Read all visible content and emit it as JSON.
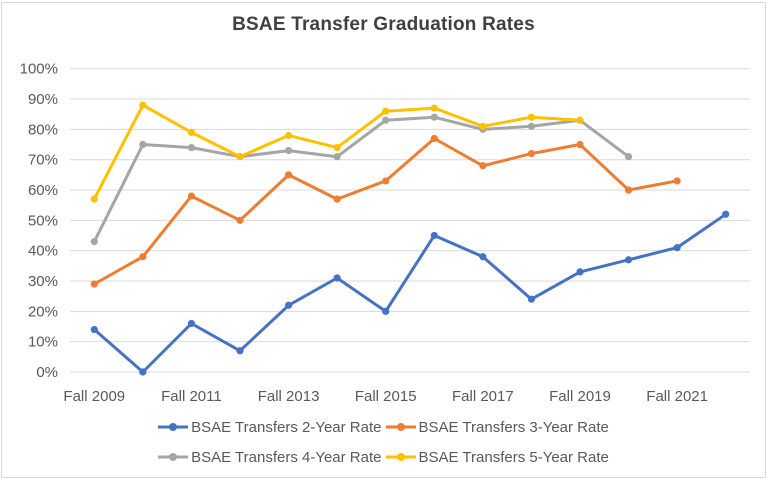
{
  "title": "BSAE Transfer Graduation Rates",
  "chart_data": {
    "type": "line",
    "title": "BSAE Transfer Graduation Rates",
    "categories": [
      "Fall 2009",
      "Fall 2010",
      "Fall 2011",
      "Fall 2012",
      "Fall 2013",
      "Fall 2014",
      "Fall 2015",
      "Fall 2016",
      "Fall 2017",
      "Fall 2018",
      "Fall 2019",
      "Fall 2020",
      "Fall 2021",
      "Fall 2022"
    ],
    "x_tick_labels": [
      "Fall 2009",
      "Fall 2011",
      "Fall 2013",
      "Fall 2015",
      "Fall 2017",
      "Fall 2019",
      "Fall 2021"
    ],
    "y_ticks": [
      "0%",
      "10%",
      "20%",
      "30%",
      "40%",
      "50%",
      "60%",
      "70%",
      "80%",
      "90%",
      "100%"
    ],
    "ylim": [
      0,
      100
    ],
    "grid": "horizontal",
    "gridline_color": "#d9d9d9",
    "axis_text_color": "#595959",
    "legend_position": "bottom",
    "marker": "circle",
    "series": [
      {
        "name": "BSAE Transfers 2-Year Rate",
        "color": "#4472C4",
        "values": [
          14,
          0,
          16,
          7,
          22,
          31,
          20,
          45,
          38,
          24,
          33,
          37,
          41,
          52
        ]
      },
      {
        "name": "BSAE Transfers 3-Year Rate",
        "color": "#ED7D31",
        "values": [
          29,
          38,
          58,
          50,
          65,
          57,
          63,
          77,
          68,
          72,
          75,
          60,
          63
        ]
      },
      {
        "name": "BSAE Transfers 4-Year Rate",
        "color": "#A5A5A5",
        "values": [
          43,
          75,
          74,
          71,
          73,
          71,
          83,
          84,
          80,
          81,
          83,
          71
        ]
      },
      {
        "name": "BSAE Transfers 5-Year Rate",
        "color": "#FFC000",
        "values": [
          57,
          88,
          79,
          71,
          78,
          74,
          86,
          87,
          81,
          84,
          83
        ]
      }
    ]
  }
}
